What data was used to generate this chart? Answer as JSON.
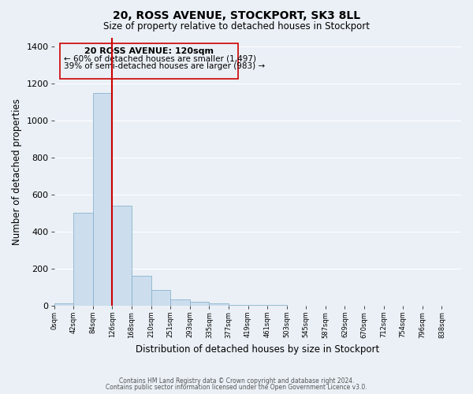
{
  "title": "20, ROSS AVENUE, STOCKPORT, SK3 8LL",
  "subtitle": "Size of property relative to detached houses in Stockport",
  "xlabel": "Distribution of detached houses by size in Stockport",
  "ylabel": "Number of detached properties",
  "bar_values": [
    10,
    500,
    1150,
    540,
    160,
    85,
    35,
    20,
    10,
    5,
    2,
    1,
    0,
    0,
    0,
    0,
    0,
    0,
    0,
    0
  ],
  "tick_labels": [
    "0sqm",
    "42sqm",
    "84sqm",
    "126sqm",
    "168sqm",
    "210sqm",
    "251sqm",
    "293sqm",
    "335sqm",
    "377sqm",
    "419sqm",
    "461sqm",
    "503sqm",
    "545sqm",
    "587sqm",
    "629sqm",
    "670sqm",
    "712sqm",
    "754sqm",
    "796sqm",
    "838sqm"
  ],
  "bar_color": "#ccdded",
  "bar_edge_color": "#8ab4cc",
  "ylim": [
    0,
    1450
  ],
  "yticks": [
    0,
    200,
    400,
    600,
    800,
    1000,
    1200,
    1400
  ],
  "vline_color": "#cc0000",
  "annotation_title": "20 ROSS AVENUE: 120sqm",
  "annotation_line1": "← 60% of detached houses are smaller (1,497)",
  "annotation_line2": "39% of semi-detached houses are larger (983) →",
  "footer1": "Contains HM Land Registry data © Crown copyright and database right 2024.",
  "footer2": "Contains public sector information licensed under the Open Government Licence v3.0.",
  "bg_color": "#eaf0f6",
  "grid_color": "#ffffff"
}
